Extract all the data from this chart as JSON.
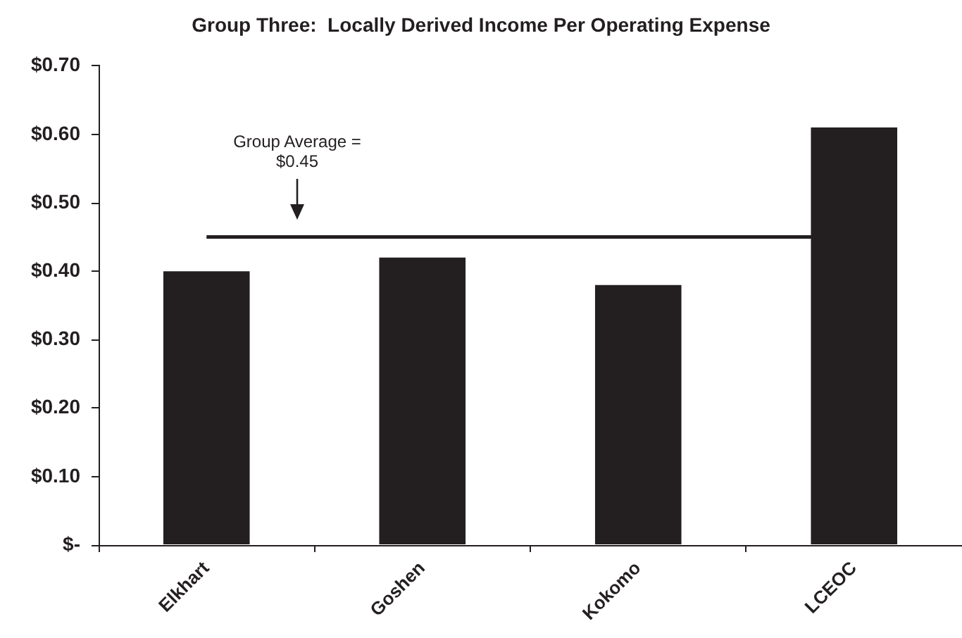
{
  "chart_data": {
    "type": "bar",
    "title": "Group Three:  Locally Derived Income Per Operating Expense",
    "categories": [
      "Elkhart",
      "Goshen",
      "Kokomo",
      "LCEOC"
    ],
    "values": [
      0.4,
      0.42,
      0.38,
      0.61
    ],
    "color": "#231f20",
    "ylim": [
      0,
      0.7
    ],
    "yticks": [
      {
        "value": 0,
        "label": "$-"
      },
      {
        "value": 0.1,
        "label": "$0.10"
      },
      {
        "value": 0.2,
        "label": "$0.20"
      },
      {
        "value": 0.3,
        "label": "$0.30"
      },
      {
        "value": 0.4,
        "label": "$0.40"
      },
      {
        "value": 0.5,
        "label": "$0.50"
      },
      {
        "value": 0.6,
        "label": "$0.60"
      },
      {
        "value": 0.7,
        "label": "$0.70"
      }
    ],
    "grid": false,
    "ref_lines": [
      {
        "axis": "y",
        "value": 0.45,
        "label": "Group Average = $0.45",
        "color": "#231f20"
      }
    ]
  }
}
